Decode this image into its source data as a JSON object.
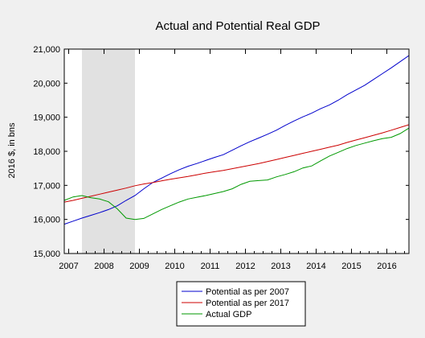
{
  "chart_data": {
    "type": "line",
    "title": "Actual and Potential Real GDP",
    "ylabel": "2016 $, in bns",
    "xlabel": "",
    "xlim": [
      2006.875,
      2016.625
    ],
    "ylim": [
      15000,
      21000
    ],
    "yticks": [
      15000,
      16000,
      17000,
      18000,
      19000,
      20000,
      21000
    ],
    "ytick_labels": [
      "15,000",
      "16,000",
      "17,000",
      "18,000",
      "19,000",
      "20,000",
      "21,000"
    ],
    "xticks": [
      2007,
      2008,
      2009,
      2010,
      2011,
      2012,
      2013,
      2014,
      2015,
      2016
    ],
    "xtick_labels": [
      "2007",
      "2008",
      "2009",
      "2010",
      "2011",
      "2012",
      "2013",
      "2014",
      "2015",
      "2016"
    ],
    "grid": false,
    "legend_position": "bottom-center",
    "shaded_region": {
      "x0": 2007.375,
      "x1": 2008.875,
      "color": "#e1e1e1"
    },
    "series": [
      {
        "name": "Potential as per 2007",
        "color": "#0000cc",
        "x": [
          2006.875,
          2007.125,
          2007.375,
          2007.625,
          2007.875,
          2008.125,
          2008.375,
          2008.625,
          2008.875,
          2009.125,
          2009.375,
          2009.625,
          2009.875,
          2010.125,
          2010.375,
          2010.625,
          2010.875,
          2011.125,
          2011.375,
          2011.625,
          2011.875,
          2012.125,
          2012.375,
          2012.625,
          2012.875,
          2013.125,
          2013.375,
          2013.625,
          2013.875,
          2014.125,
          2014.375,
          2014.625,
          2014.875,
          2015.125,
          2015.375,
          2015.625,
          2015.875,
          2016.125,
          2016.375,
          2016.625
        ],
        "y": [
          15860,
          15950,
          16040,
          16120,
          16200,
          16290,
          16400,
          16560,
          16700,
          16900,
          17080,
          17210,
          17340,
          17460,
          17560,
          17640,
          17730,
          17820,
          17900,
          18030,
          18160,
          18280,
          18390,
          18500,
          18620,
          18760,
          18890,
          19010,
          19120,
          19250,
          19360,
          19500,
          19660,
          19800,
          19940,
          20110,
          20280,
          20450,
          20630,
          20810
        ]
      },
      {
        "name": "Potential as per 2017",
        "color": "#cc0000",
        "x": [
          2006.875,
          2007.125,
          2007.375,
          2007.625,
          2007.875,
          2008.125,
          2008.375,
          2008.625,
          2008.875,
          2009.125,
          2009.375,
          2009.625,
          2009.875,
          2010.125,
          2010.375,
          2010.625,
          2010.875,
          2011.125,
          2011.375,
          2011.625,
          2011.875,
          2012.125,
          2012.375,
          2012.625,
          2012.875,
          2013.125,
          2013.375,
          2013.625,
          2013.875,
          2014.125,
          2014.375,
          2014.625,
          2014.875,
          2015.125,
          2015.375,
          2015.625,
          2015.875,
          2016.125,
          2016.375,
          2016.625
        ],
        "y": [
          16510,
          16560,
          16620,
          16680,
          16740,
          16800,
          16860,
          16920,
          16990,
          17040,
          17080,
          17130,
          17180,
          17220,
          17260,
          17310,
          17360,
          17400,
          17440,
          17490,
          17540,
          17590,
          17640,
          17700,
          17760,
          17820,
          17880,
          17940,
          18000,
          18060,
          18120,
          18180,
          18260,
          18330,
          18400,
          18470,
          18540,
          18620,
          18700,
          18780
        ]
      },
      {
        "name": "Actual GDP",
        "color": "#009900",
        "x": [
          2006.875,
          2007.125,
          2007.375,
          2007.625,
          2007.875,
          2008.125,
          2008.375,
          2008.625,
          2008.875,
          2009.125,
          2009.375,
          2009.625,
          2009.875,
          2010.125,
          2010.375,
          2010.625,
          2010.875,
          2011.125,
          2011.375,
          2011.625,
          2011.875,
          2012.125,
          2012.375,
          2012.625,
          2012.875,
          2013.125,
          2013.375,
          2013.625,
          2013.875,
          2014.125,
          2014.375,
          2014.625,
          2014.875,
          2015.125,
          2015.375,
          2015.625,
          2015.875,
          2016.125,
          2016.375,
          2016.625
        ],
        "y": [
          16560,
          16660,
          16700,
          16640,
          16600,
          16520,
          16310,
          16040,
          16000,
          16030,
          16160,
          16290,
          16400,
          16510,
          16600,
          16650,
          16700,
          16760,
          16820,
          16900,
          17030,
          17120,
          17140,
          17160,
          17250,
          17320,
          17400,
          17510,
          17570,
          17720,
          17860,
          17970,
          18080,
          18170,
          18240,
          18310,
          18370,
          18410,
          18520,
          18680
        ]
      }
    ]
  }
}
